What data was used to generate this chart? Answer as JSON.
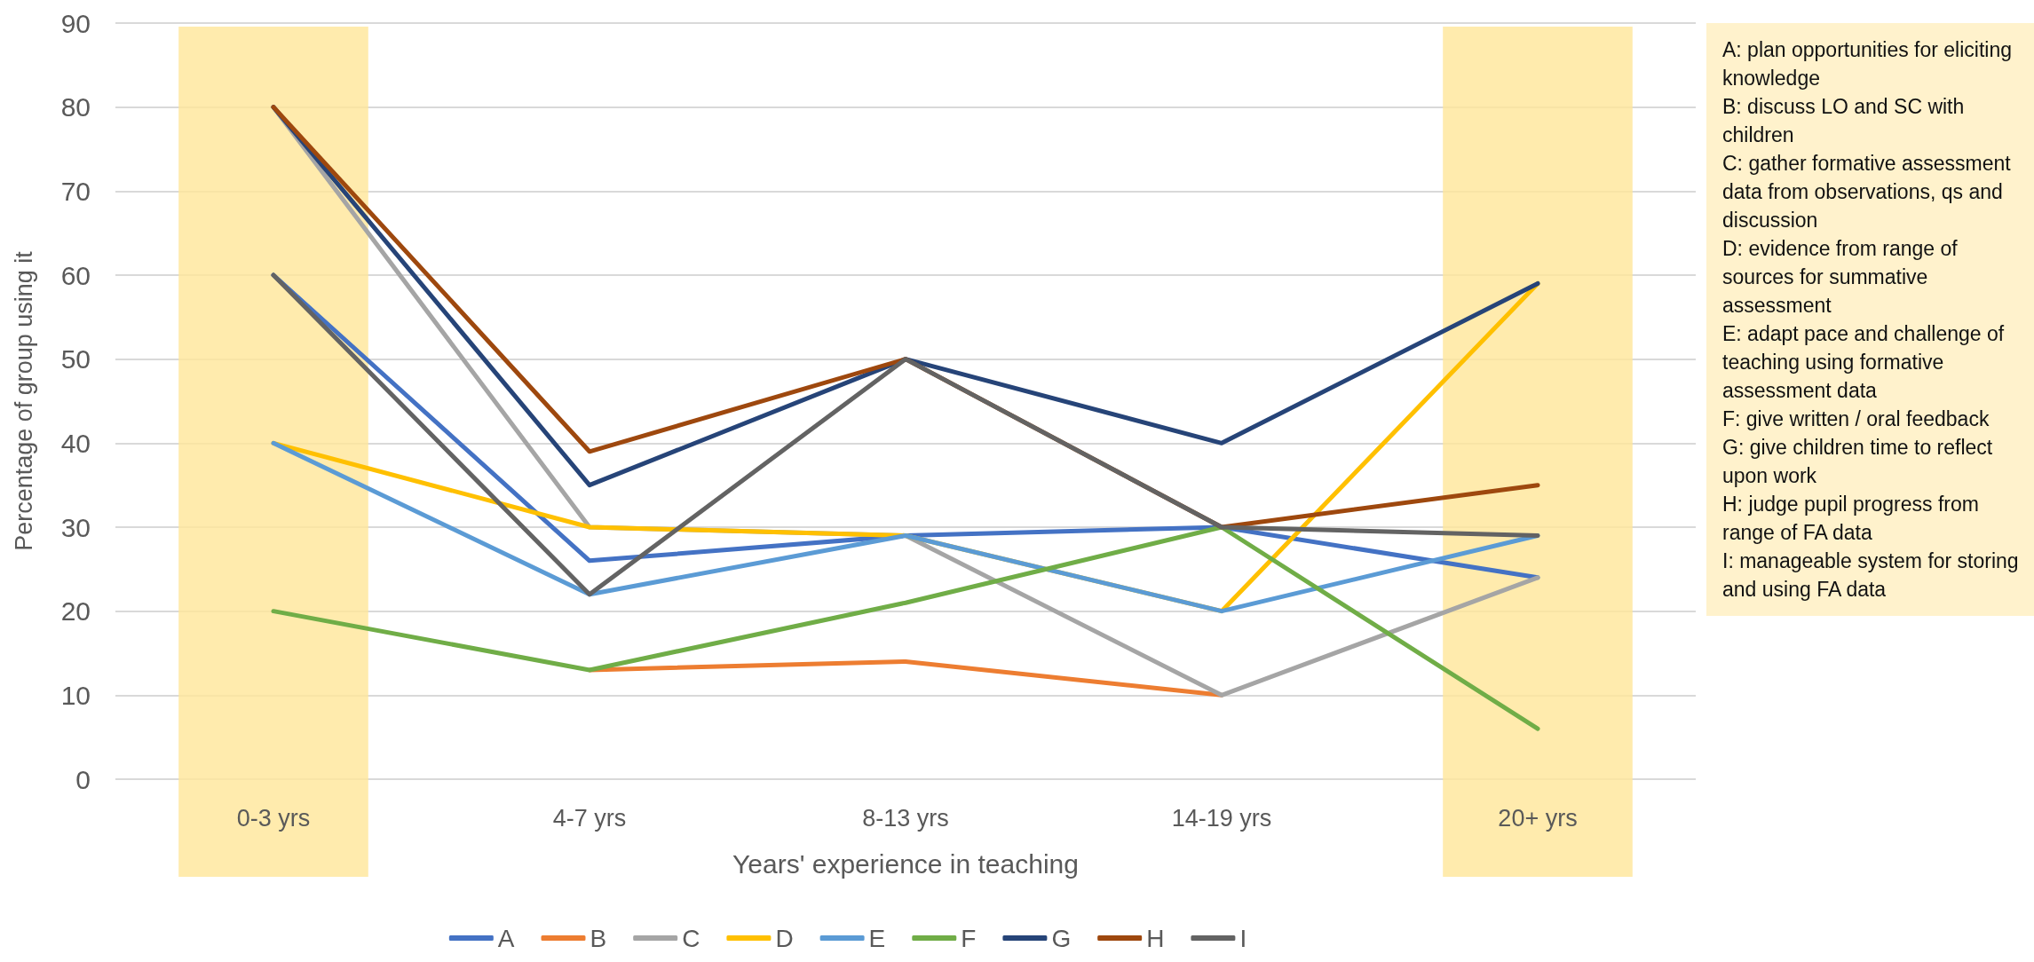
{
  "chart_data": {
    "type": "line",
    "xlabel": "Years' experience in teaching",
    "ylabel": "Percentage of group using it",
    "categories": [
      "0-3 yrs",
      "4-7 yrs",
      "8-13 yrs",
      "14-19 yrs",
      "20+ yrs"
    ],
    "series": [
      {
        "name": "A",
        "color": "#4472c4",
        "values": [
          60,
          26,
          29,
          30,
          24
        ]
      },
      {
        "name": "B",
        "color": "#ed7d31",
        "values": [
          null,
          13,
          14,
          10,
          null
        ]
      },
      {
        "name": "C",
        "color": "#a5a5a5",
        "values": [
          80,
          30,
          29,
          10,
          24
        ]
      },
      {
        "name": "D",
        "color": "#ffc000",
        "values": [
          40,
          30,
          29,
          20,
          59
        ]
      },
      {
        "name": "E",
        "color": "#5b9bd5",
        "values": [
          40,
          22,
          29,
          20,
          29
        ]
      },
      {
        "name": "F",
        "color": "#70ad47",
        "values": [
          20,
          13,
          21,
          30,
          6
        ]
      },
      {
        "name": "G",
        "color": "#264478",
        "values": [
          80,
          35,
          50,
          40,
          59
        ]
      },
      {
        "name": "H",
        "color": "#9e480e",
        "values": [
          80,
          39,
          50,
          30,
          35
        ]
      },
      {
        "name": "I",
        "color": "#636363",
        "values": [
          60,
          22,
          50,
          30,
          29
        ]
      }
    ],
    "ylim": [
      0,
      90
    ],
    "yticks": [
      0,
      10,
      20,
      30,
      40,
      50,
      60,
      70,
      80,
      90
    ],
    "bands": [
      {
        "axis": "x",
        "from": "0-3 yrs",
        "to": "0-3 yrs",
        "color": "#ffe699"
      },
      {
        "axis": "x",
        "from": "20+ yrs",
        "to": "20+ yrs",
        "color": "#ffe699"
      }
    ],
    "annotations": [
      "A: plan opportunities for eliciting knowledge",
      "B: discuss LO and SC with children",
      "C: gather formative assessment data from observations, qs and discussion",
      "D: evidence from range of sources for summative assessment",
      "E: adapt pace and challenge of teaching using formative assessment data",
      "F: give written / oral feedback",
      "G: give children time to reflect upon work",
      "H: judge pupil progress from range of FA data",
      "I: manageable system for storing and using FA data"
    ],
    "grid": "y",
    "legend": "bottom",
    "marker": "none",
    "line_style": "solid"
  }
}
